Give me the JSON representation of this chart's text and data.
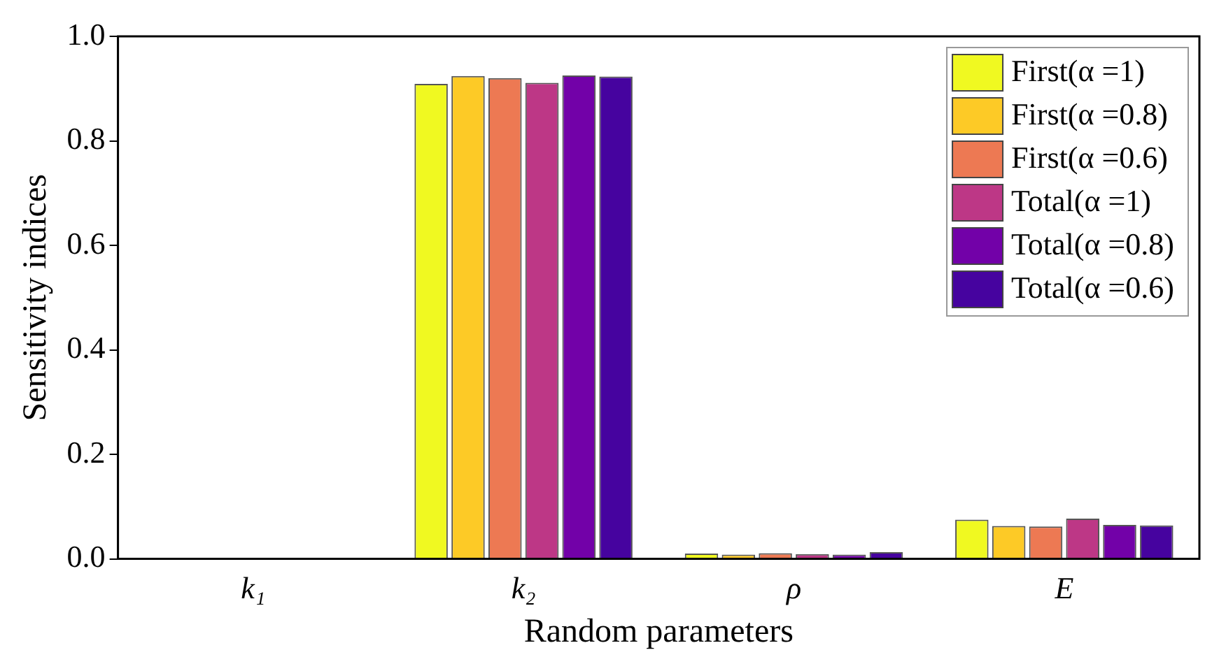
{
  "chart_data": {
    "type": "bar",
    "xlabel": "Random parameters",
    "ylabel": "Sensitivity indices",
    "categories": [
      "k₁",
      "k₂",
      "ρ",
      "E"
    ],
    "series": [
      {
        "name": "First(α =1)",
        "color": "#f0f921",
        "values": [
          0,
          0.909,
          0.01,
          0.075
        ]
      },
      {
        "name": "First(α =0.8)",
        "color": "#fdca26",
        "values": [
          0,
          0.924,
          0.008,
          0.063
        ]
      },
      {
        "name": "First(α =0.6)",
        "color": "#ed7953",
        "values": [
          0,
          0.92,
          0.011,
          0.062
        ]
      },
      {
        "name": "Total(α =1)",
        "color": "#bd3786",
        "values": [
          0,
          0.911,
          0.009,
          0.077
        ]
      },
      {
        "name": "Total(α =0.8)",
        "color": "#7201a8",
        "values": [
          0,
          0.925,
          0.008,
          0.065
        ]
      },
      {
        "name": "Total(α =0.6)",
        "color": "#46039f",
        "values": [
          0,
          0.923,
          0.013,
          0.064
        ]
      }
    ],
    "ylim": [
      0,
      1
    ],
    "yticks": [
      {
        "value": 0,
        "label": "0.0"
      },
      0.2,
      0.4,
      0.6,
      0.8,
      {
        "value": 1,
        "label": "1.0"
      }
    ],
    "grid": false,
    "legend": "top right"
  }
}
